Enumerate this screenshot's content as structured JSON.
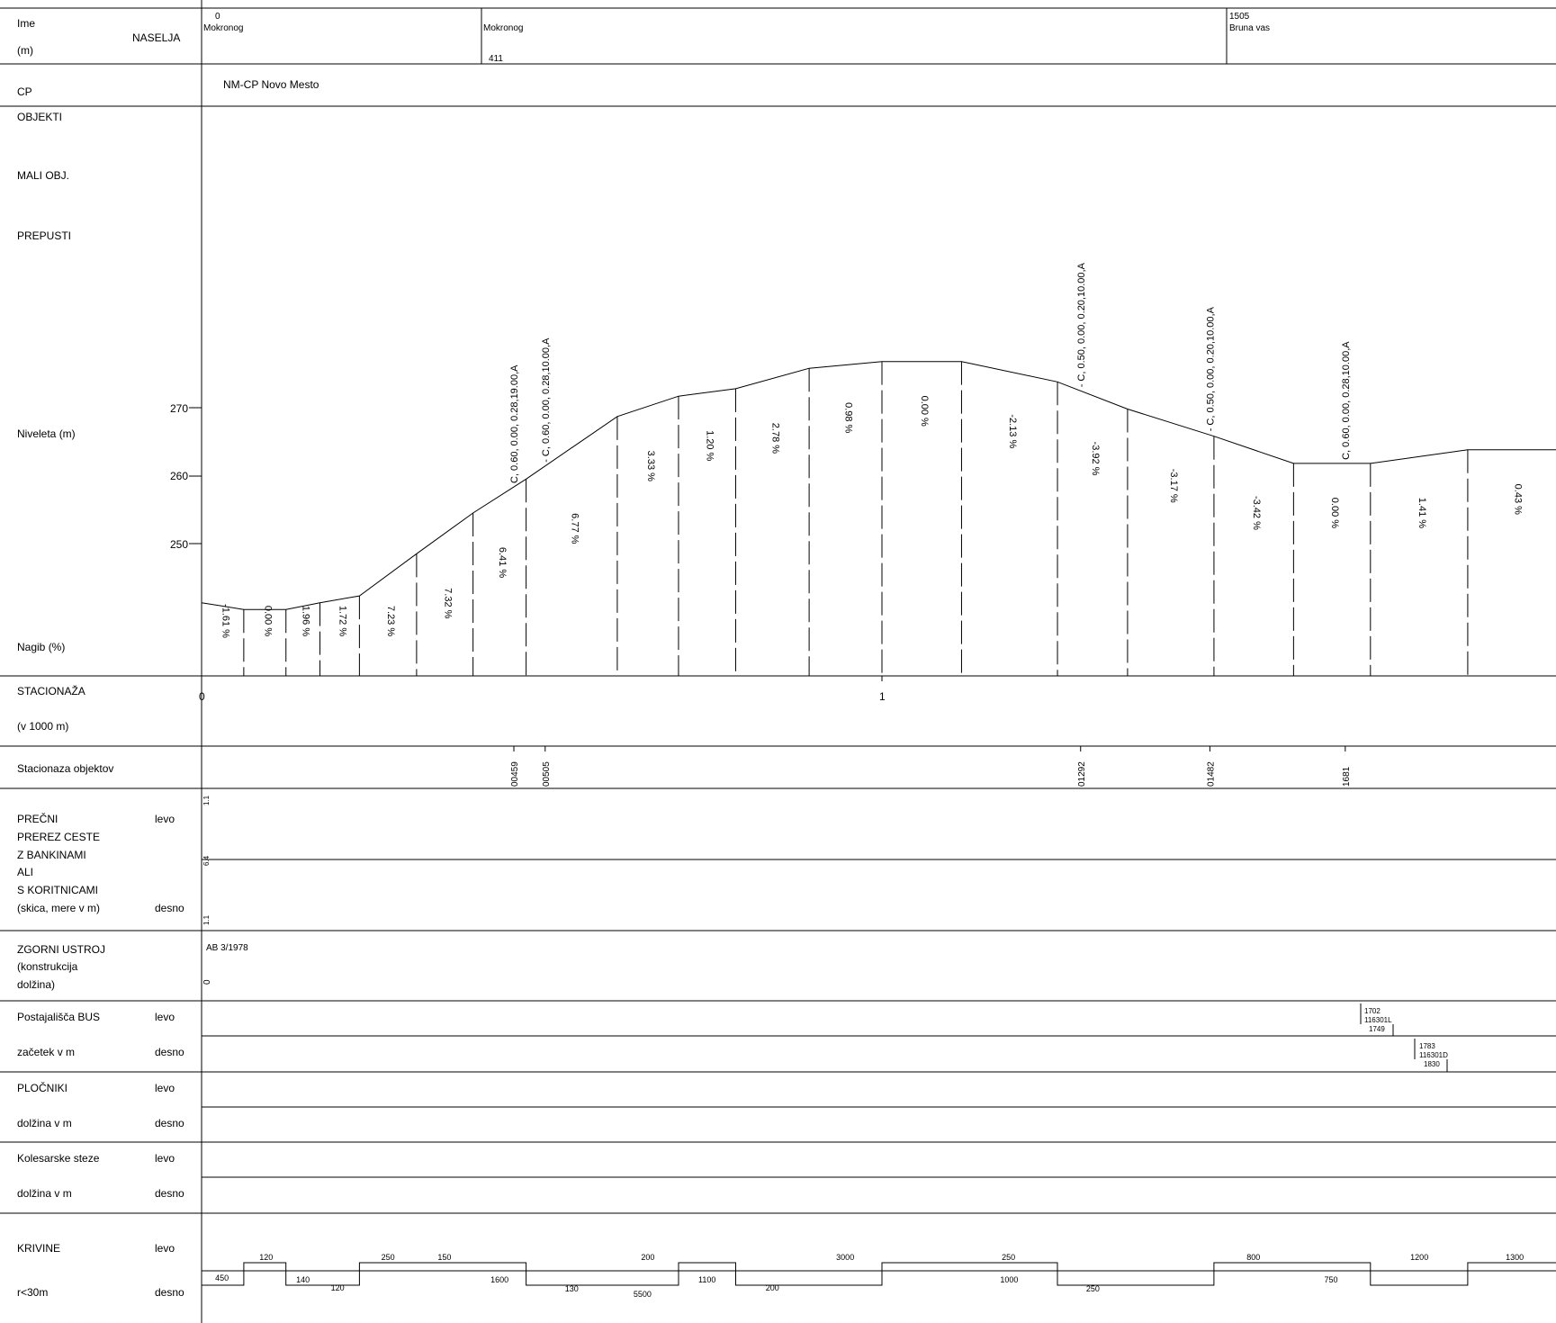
{
  "rows": {
    "ime": "Ime",
    "ime_unit": "(m)",
    "naselja": "NASELJA",
    "cp": "CP",
    "objekti": "OBJEKTI",
    "mali_obj": "MALI OBJ.",
    "prepusti": "PREPUSTI",
    "niveleta": "Niveleta (m)",
    "nagib": "Nagib (%)",
    "stacionaza": "STACIONAŽA",
    "stacionaza_unit": "(v  1000 m)",
    "stacionaza_objektov": "Stacionaza objektov",
    "precni_lines": [
      "PREČNI",
      "PREREZ CESTE",
      "Z BANKINAMI",
      "ALI",
      "S KORITNICAMI",
      "(skica, mere v m)"
    ],
    "zgornji_lines": [
      "ZGORNI USTROJ",
      "(konstrukcija",
      "dolžina)"
    ],
    "postajalisca": "Postajališča BUS",
    "zacetek": " začetek v m",
    "plocniki": "PLOČNIKI",
    "plocniki_dolzina": " dolžina v m",
    "kolesarske": "Kolesarske steze",
    "kolesarske_dolzina": " dolžina v m",
    "krivine": "KRIVINE",
    "krivine_r": " r<30m",
    "levo": "levo",
    "desno": "desno"
  },
  "naselja": [
    {
      "km": "0",
      "name": "Mokronog"
    },
    {
      "km": "",
      "name": "Mokronog"
    },
    {
      "km": "1505",
      "name": "Bruna vas"
    }
  ],
  "naselja_value_411": "411",
  "cp_name": "NM-CP Novo Mesto",
  "niveleta_ticks": [
    "270",
    "260",
    "250"
  ],
  "stacionaza_ticks": [
    "0",
    "1"
  ],
  "objects": [
    {
      "station": "00459",
      "label": "C, 0.60, 0.00, 0.28,19.00,A"
    },
    {
      "station": "00505",
      "label": "- C, 0.60, 0.00, 0.28,10.00,A"
    },
    {
      "station": "01292",
      "label": "- C, 0.50, 0.00, 0.20,10.00,A"
    },
    {
      "station": "01482",
      "label": "- C, 0.50, 0.00, 0.20,10.00,A"
    },
    {
      "station": "1681",
      "label": "C, 0.60, 0.00, 0.28,10.00,A"
    }
  ],
  "grades": [
    "-1.61 %",
    "0.00 %",
    "1.96 %",
    "1.72 %",
    "7.23 %",
    "7.32 %",
    "6.41 %",
    "6.77 %",
    "3.33 %",
    "1.20 %",
    "2.78 %",
    "0.98 %",
    "0.00 %",
    "-2.13 %",
    "-3.92 %",
    "-3.17 %",
    "-3.42 %",
    "0.00 %",
    "1.41 %",
    "0.43 %"
  ],
  "cross_section": [
    "1.1",
    "6.4",
    "1.1"
  ],
  "zgornji": {
    "label": "AB 3/1978",
    "start": "0"
  },
  "bus_levo": {
    "start": "1702",
    "code": "116301L",
    "end": "1749"
  },
  "bus_desno": {
    "start": "1783",
    "code": "116301D",
    "end": "1830"
  },
  "curves_levo": [
    "120",
    "250",
    "150",
    "200",
    "3000",
    "250",
    "800",
    "1200",
    "1300"
  ],
  "curves_desno": [
    "450",
    "140",
    "120",
    "1600",
    "130",
    "5500",
    "1100",
    "200",
    "1000",
    "250",
    "750"
  ],
  "chart_data": {
    "type": "line",
    "title": "",
    "xlabel": "STACIONAŽA",
    "ylabel": "Niveleta (m)",
    "y_ticks": [
      270,
      260,
      250
    ],
    "series": [
      {
        "values": [
          [
            0,
            241.3
          ],
          [
            0.062,
            240.3
          ],
          [
            0.124,
            240.3
          ],
          [
            0.174,
            241.3
          ],
          [
            0.232,
            242.3
          ],
          [
            0.316,
            248.5
          ],
          [
            0.399,
            254.5
          ],
          [
            0.477,
            259.5
          ],
          [
            0.611,
            268.7
          ],
          [
            0.701,
            271.7
          ],
          [
            0.785,
            272.8
          ],
          [
            0.893,
            275.8
          ],
          [
            1.0,
            276.8
          ],
          [
            1.117,
            276.8
          ],
          [
            1.258,
            273.8
          ],
          [
            1.361,
            269.8
          ],
          [
            1.488,
            265.8
          ],
          [
            1.605,
            261.8
          ],
          [
            1.718,
            261.8
          ],
          [
            1.861,
            263.8
          ],
          [
            2.0,
            263.8
          ]
        ]
      }
    ]
  }
}
